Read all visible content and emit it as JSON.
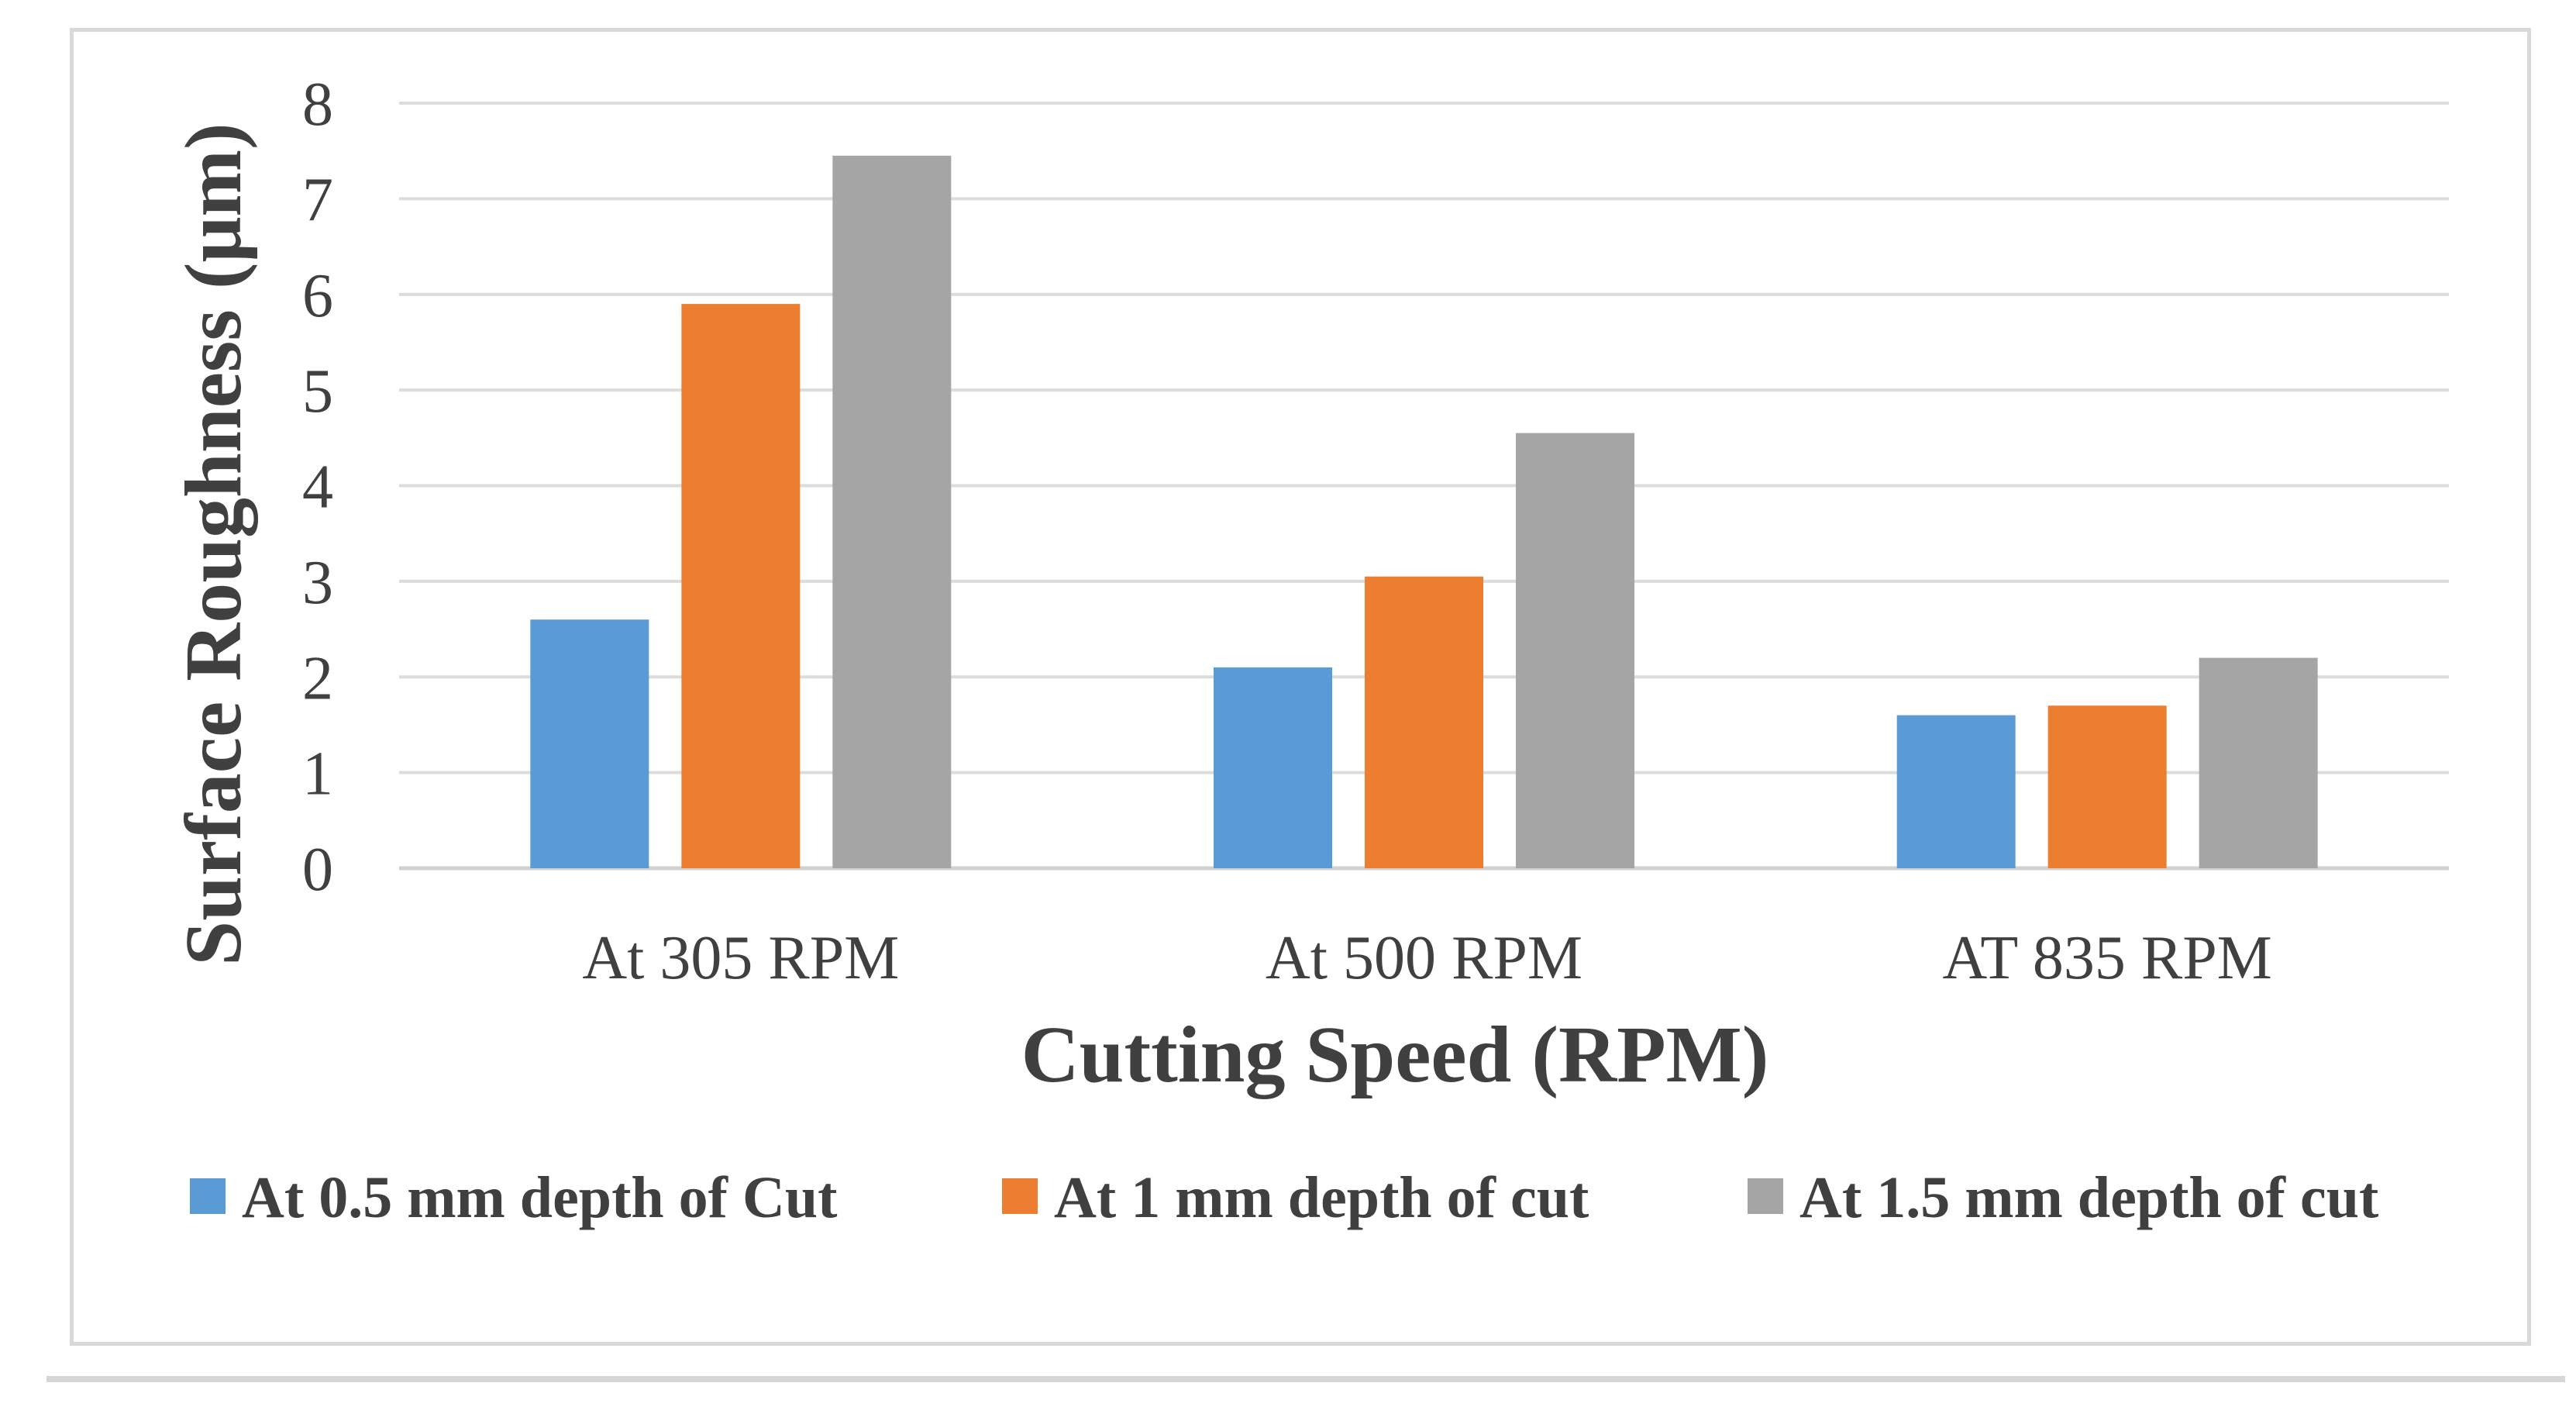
{
  "chart_data": {
    "type": "bar",
    "title": "",
    "xlabel": "Cutting Speed (RPM)",
    "ylabel": "Surface Roughness (μm)",
    "categories": [
      "At 305 RPM",
      "At 500 RPM",
      "AT 835 RPM"
    ],
    "ylim": [
      0,
      8
    ],
    "yticks": [
      0,
      1,
      2,
      3,
      4,
      5,
      6,
      7,
      8
    ],
    "grid": true,
    "legend_position": "bottom",
    "series": [
      {
        "name": "At 0.5 mm depth of Cut",
        "color": "#5b9bd5",
        "values": [
          2.6,
          2.1,
          1.6
        ]
      },
      {
        "name": "At 1 mm depth of cut",
        "color": "#ed7d31",
        "values": [
          5.9,
          3.05,
          1.7
        ]
      },
      {
        "name": "At 1.5 mm depth of cut",
        "color": "#a5a5a5",
        "values": [
          7.45,
          4.55,
          2.2
        ]
      }
    ]
  }
}
